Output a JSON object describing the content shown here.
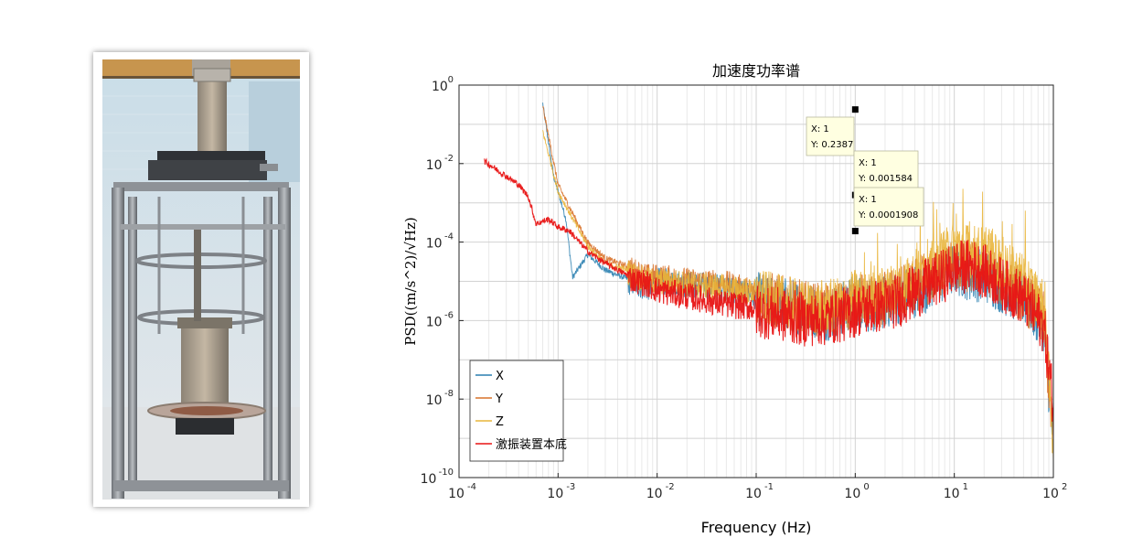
{
  "photo": {
    "alt_subject": "vibration test apparatus"
  },
  "chart_data": {
    "type": "line",
    "title": "加速度功率谱",
    "xlabel": "Frequency (Hz)",
    "ylabel": "PSD((m/s^2)/√Hz)",
    "x_scale": "log",
    "y_scale": "log",
    "xlim": [
      0.0001,
      100
    ],
    "ylim": [
      1e-10,
      1
    ],
    "x_ticks": [
      {
        "base": "10",
        "exp": "-4"
      },
      {
        "base": "10",
        "exp": "-3"
      },
      {
        "base": "10",
        "exp": "-2"
      },
      {
        "base": "10",
        "exp": "-1"
      },
      {
        "base": "10",
        "exp": "0"
      },
      {
        "base": "10",
        "exp": "1"
      },
      {
        "base": "10",
        "exp": "2"
      }
    ],
    "y_ticks": [
      {
        "base": "10",
        "exp": "-10"
      },
      {
        "base": "10",
        "exp": "-8"
      },
      {
        "base": "10",
        "exp": "-6"
      },
      {
        "base": "10",
        "exp": "-4"
      },
      {
        "base": "10",
        "exp": "-2"
      },
      {
        "base": "10",
        "exp": "0"
      }
    ],
    "grid": true,
    "legend_position": "bottom-left",
    "series": [
      {
        "name": "X",
        "color": "#2a7fb0",
        "x": [
          0.0007,
          0.0009,
          0.0012,
          0.0014,
          0.002,
          0.003,
          0.005,
          0.008,
          0.01,
          0.02,
          0.05,
          0.1,
          0.3,
          0.5,
          0.8,
          1,
          1.5,
          2,
          3,
          5,
          8,
          10,
          15,
          20,
          30,
          50,
          80,
          100
        ],
        "y": [
          0.35,
          0.005,
          0.0004,
          1.3e-05,
          5e-05,
          2e-05,
          1.2e-05,
          8e-06,
          1.2e-05,
          1e-05,
          8e-06,
          5e-06,
          3e-06,
          2e-06,
          3e-06,
          5e-06,
          3e-06,
          4e-06,
          6e-06,
          1e-05,
          2e-05,
          3e-05,
          2e-05,
          2e-05,
          1e-05,
          5e-06,
          1e-06,
          1e-09
        ]
      },
      {
        "name": "Y",
        "color": "#d9722a",
        "x": [
          0.0007,
          0.001,
          0.0015,
          0.002,
          0.003,
          0.005,
          0.008,
          0.01,
          0.02,
          0.05,
          0.1,
          0.3,
          0.5,
          0.8,
          1,
          1.5,
          2,
          3,
          5,
          8,
          10,
          15,
          20,
          30,
          50,
          80,
          100
        ],
        "y": [
          0.3,
          0.003,
          0.0004,
          0.0001,
          4e-05,
          2.5e-05,
          1.5e-05,
          1.5e-05,
          1.2e-05,
          1e-05,
          6e-06,
          3e-06,
          2.5e-06,
          3e-06,
          5e-06,
          4e-06,
          5e-06,
          7e-06,
          1.5e-05,
          2.5e-05,
          4e-05,
          3e-05,
          3e-05,
          1.5e-05,
          6e-06,
          1.5e-06,
          1e-09
        ]
      },
      {
        "name": "Z",
        "color": "#e9b53a",
        "x": [
          0.0007,
          0.001,
          0.0015,
          0.002,
          0.003,
          0.005,
          0.008,
          0.01,
          0.02,
          0.05,
          0.1,
          0.3,
          0.5,
          0.8,
          1,
          1.5,
          2,
          3,
          5,
          8,
          10,
          15,
          20,
          30,
          50,
          80,
          100
        ],
        "y": [
          0.07,
          0.002,
          0.0003,
          8e-05,
          3e-05,
          2e-05,
          1.2e-05,
          1.2e-05,
          1e-05,
          8e-06,
          6e-06,
          3e-06,
          3e-06,
          4e-06,
          6e-06,
          5e-06,
          7e-06,
          1e-05,
          3e-05,
          6e-05,
          0.0001,
          8e-05,
          7e-05,
          4e-05,
          1.5e-05,
          3e-06,
          1e-09
        ]
      },
      {
        "name": "激振装置本底",
        "color": "#e81414",
        "x": [
          0.00018,
          0.0004,
          0.0005,
          0.0006,
          0.0008,
          0.001,
          0.0013,
          0.002,
          0.003,
          0.005,
          0.008,
          0.01,
          0.02,
          0.05,
          0.1,
          0.3,
          0.5,
          0.8,
          1,
          2,
          3,
          5,
          8,
          10,
          15,
          20,
          30,
          50,
          80,
          100
        ],
        "y": [
          0.012,
          0.003,
          0.0015,
          0.0003,
          0.0004,
          0.00025,
          0.0002,
          6e-05,
          3e-05,
          1.5e-05,
          1e-05,
          7e-06,
          5e-06,
          3e-06,
          2.5e-06,
          1.5e-06,
          1.5e-06,
          2e-06,
          2.5e-06,
          3.5e-06,
          5e-06,
          1e-05,
          2e-05,
          3e-05,
          3.5e-05,
          2.5e-05,
          1.2e-05,
          5e-06,
          1e-06,
          1e-08
        ]
      }
    ],
    "datatips": [
      {
        "x_label": "X: 1",
        "y_label": "Y: 0.2387",
        "x": 1,
        "y": 0.2387
      },
      {
        "x_label": "X: 1",
        "y_label": "Y: 0.001584",
        "x": 1,
        "y": 0.001584
      },
      {
        "x_label": "X: 1",
        "y_label": "Y: 0.0001908",
        "x": 1,
        "y": 0.0001908
      }
    ]
  }
}
